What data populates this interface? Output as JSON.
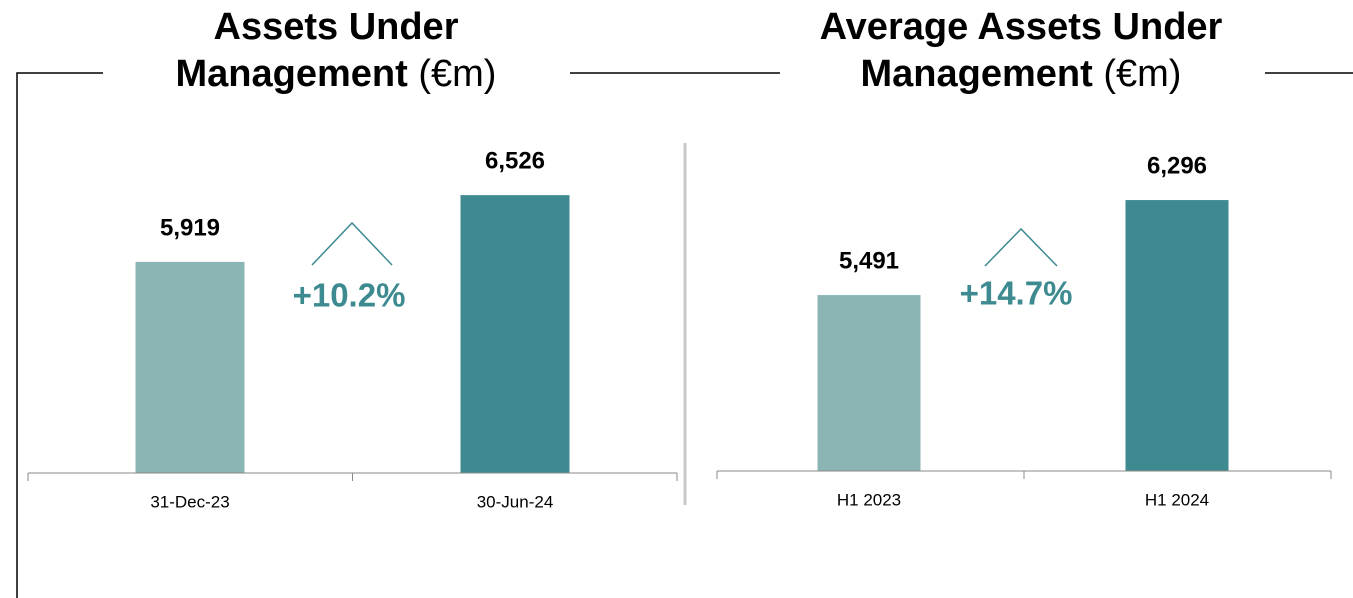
{
  "chart_data": [
    {
      "type": "bar",
      "title": "Assets Under Management",
      "unit": "(€m)",
      "categories": [
        "31-Dec-23",
        "30-Jun-24"
      ],
      "values": [
        5919,
        6526
      ],
      "value_labels": [
        "5,919",
        "6,526"
      ],
      "colors": [
        "#8bb5b5",
        "#3d8a91"
      ],
      "annotation": "+10.2%",
      "annotation_color": "#3d8a91",
      "ylim": [
        4000,
        7000
      ]
    },
    {
      "type": "bar",
      "title": "Average Assets Under Management",
      "unit": "(€m)",
      "categories": [
        "H1 2023",
        "H1 2024"
      ],
      "values": [
        5491,
        6296
      ],
      "value_labels": [
        "5,491",
        "6,296"
      ],
      "colors": [
        "#8bb5b5",
        "#3d8a91"
      ],
      "annotation": "+14.7%",
      "annotation_color": "#3d8a91",
      "ylim": [
        4000,
        7000
      ]
    }
  ]
}
